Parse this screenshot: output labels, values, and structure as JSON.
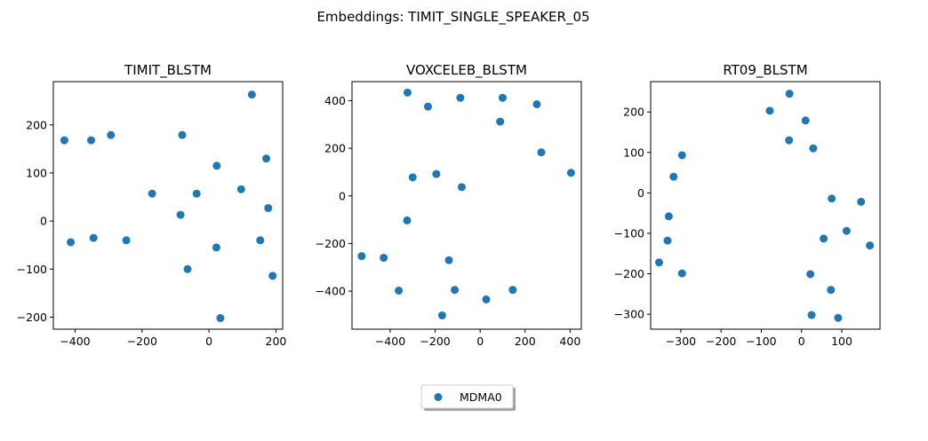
{
  "figure": {
    "suptitle": "Embeddings: TIMIT_SINGLE_SPEAKER_05",
    "legend": {
      "label": "MDMA0",
      "placement": "bottom-center",
      "color": "#1f77b4"
    }
  },
  "chart_data": [
    {
      "type": "scatter",
      "title": "TIMIT_BLSTM",
      "xlim": [
        -465,
        220
      ],
      "ylim": [
        -225,
        290
      ],
      "xticks": [
        -400,
        -200,
        0,
        200
      ],
      "yticks": [
        -200,
        -100,
        0,
        100,
        200
      ],
      "grid": false,
      "series": [
        {
          "name": "MDMA0",
          "color": "#1f77b4",
          "points": [
            [
              -432,
              168
            ],
            [
              -352,
              168
            ],
            [
              -293,
              179
            ],
            [
              -80,
              179
            ],
            [
              128,
              263
            ],
            [
              23,
              115
            ],
            [
              171,
              130
            ],
            [
              -170,
              57
            ],
            [
              -37,
              57
            ],
            [
              96,
              66
            ],
            [
              -85,
              13
            ],
            [
              177,
              27
            ],
            [
              -413,
              -44
            ],
            [
              -345,
              -35
            ],
            [
              -247,
              -40
            ],
            [
              153,
              -40
            ],
            [
              22,
              -55
            ],
            [
              -64,
              -100
            ],
            [
              190,
              -114
            ],
            [
              34,
              -202
            ]
          ]
        }
      ]
    },
    {
      "type": "scatter",
      "title": "VOXCELEB_BLSTM",
      "xlim": [
        -570,
        450
      ],
      "ylim": [
        -560,
        480
      ],
      "xticks": [
        -400,
        -200,
        0,
        200,
        400
      ],
      "yticks": [
        -400,
        -200,
        0,
        200,
        400
      ],
      "grid": false,
      "series": [
        {
          "name": "MDMA0",
          "color": "#1f77b4",
          "points": [
            [
              -323,
              434
            ],
            [
              -232,
              375
            ],
            [
              -88,
              412
            ],
            [
              100,
              412
            ],
            [
              252,
              385
            ],
            [
              89,
              312
            ],
            [
              272,
              183
            ],
            [
              404,
              97
            ],
            [
              -300,
              78
            ],
            [
              -195,
              92
            ],
            [
              -82,
              37
            ],
            [
              -325,
              -103
            ],
            [
              -527,
              -253
            ],
            [
              -429,
              -260
            ],
            [
              -139,
              -270
            ],
            [
              -362,
              -398
            ],
            [
              -113,
              -395
            ],
            [
              145,
              -395
            ],
            [
              27,
              -435
            ],
            [
              -169,
              -502
            ]
          ]
        }
      ]
    },
    {
      "type": "scatter",
      "title": "RT09_BLSTM",
      "xlim": [
        -375,
        195
      ],
      "ylim": [
        -337,
        275
      ],
      "xticks": [
        -300,
        -200,
        -100,
        0,
        100
      ],
      "yticks": [
        -300,
        -200,
        -100,
        0,
        100,
        200
      ],
      "grid": false,
      "series": [
        {
          "name": "MDMA0",
          "color": "#1f77b4",
          "points": [
            [
              -30,
              245
            ],
            [
              -79,
              203
            ],
            [
              10,
              179
            ],
            [
              -31,
              130
            ],
            [
              29,
              110
            ],
            [
              -297,
              93
            ],
            [
              -318,
              40
            ],
            [
              75,
              -14
            ],
            [
              148,
              -22
            ],
            [
              -330,
              -58
            ],
            [
              112,
              -94
            ],
            [
              55,
              -113
            ],
            [
              -333,
              -118
            ],
            [
              170,
              -130
            ],
            [
              -354,
              -172
            ],
            [
              -297,
              -199
            ],
            [
              22,
              -201
            ],
            [
              73,
              -240
            ],
            [
              25,
              -302
            ],
            [
              91,
              -309
            ]
          ]
        }
      ]
    }
  ]
}
